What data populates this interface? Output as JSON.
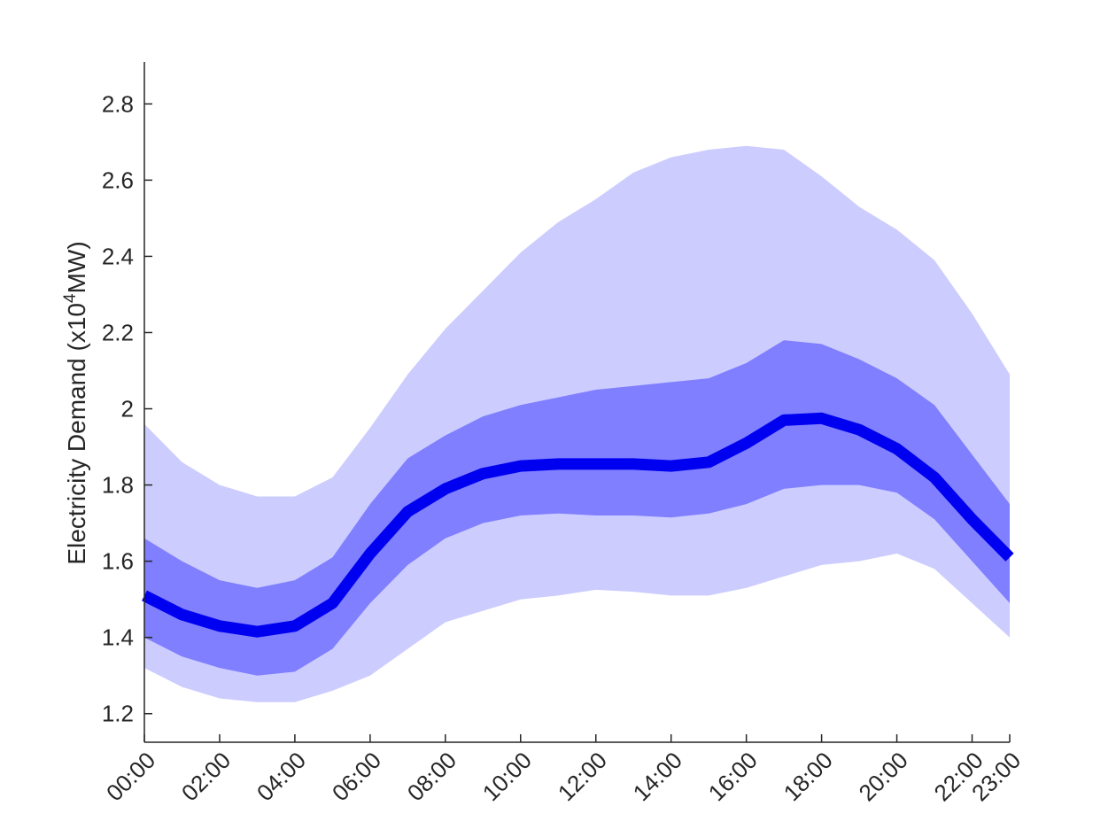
{
  "chart_data": {
    "type": "area",
    "xlabel": "",
    "ylabel": {
      "prefix": "Electricity Demand (x10",
      "superscript": "4",
      "suffix": "MW)"
    },
    "x": [
      "00:00",
      "01:00",
      "02:00",
      "03:00",
      "04:00",
      "05:00",
      "06:00",
      "07:00",
      "08:00",
      "09:00",
      "10:00",
      "11:00",
      "12:00",
      "13:00",
      "14:00",
      "15:00",
      "16:00",
      "17:00",
      "18:00",
      "19:00",
      "20:00",
      "21:00",
      "22:00",
      "23:00"
    ],
    "x_ticks": [
      "00:00",
      "02:00",
      "04:00",
      "06:00",
      "08:00",
      "10:00",
      "12:00",
      "14:00",
      "16:00",
      "18:00",
      "20:00",
      "22:00",
      "23:00"
    ],
    "y_ticks": [
      "1.2",
      "1.4",
      "1.6",
      "1.8",
      "2",
      "2.2",
      "2.4",
      "2.6",
      "2.8"
    ],
    "ylim": [
      1.125,
      2.91
    ],
    "grid": false,
    "colors": {
      "outer_band": "#ccccff",
      "inner_band": "#7f7fff",
      "mean_line": "#0000f0",
      "axis": "#262626"
    },
    "outer_band": {
      "upper": [
        1.96,
        1.86,
        1.8,
        1.77,
        1.77,
        1.82,
        1.95,
        2.09,
        2.21,
        2.31,
        2.41,
        2.49,
        2.55,
        2.62,
        2.66,
        2.68,
        2.69,
        2.68,
        2.61,
        2.53,
        2.47,
        2.39,
        2.25,
        2.09
      ],
      "lower": [
        1.32,
        1.27,
        1.24,
        1.23,
        1.23,
        1.26,
        1.3,
        1.37,
        1.44,
        1.47,
        1.5,
        1.51,
        1.525,
        1.52,
        1.51,
        1.51,
        1.53,
        1.56,
        1.59,
        1.6,
        1.62,
        1.58,
        1.49,
        1.4
      ]
    },
    "inner_band": {
      "upper": [
        1.66,
        1.6,
        1.55,
        1.53,
        1.55,
        1.61,
        1.75,
        1.87,
        1.93,
        1.98,
        2.01,
        2.03,
        2.05,
        2.06,
        2.07,
        2.08,
        2.12,
        2.18,
        2.17,
        2.13,
        2.08,
        2.01,
        1.88,
        1.75
      ],
      "lower": [
        1.4,
        1.35,
        1.32,
        1.3,
        1.31,
        1.37,
        1.49,
        1.59,
        1.66,
        1.7,
        1.72,
        1.725,
        1.72,
        1.72,
        1.715,
        1.725,
        1.75,
        1.79,
        1.8,
        1.8,
        1.78,
        1.71,
        1.6,
        1.49
      ]
    },
    "mean": [
      1.51,
      1.46,
      1.43,
      1.415,
      1.43,
      1.49,
      1.62,
      1.73,
      1.79,
      1.83,
      1.85,
      1.855,
      1.855,
      1.855,
      1.85,
      1.86,
      1.91,
      1.97,
      1.975,
      1.945,
      1.895,
      1.82,
      1.71,
      1.61
    ]
  }
}
